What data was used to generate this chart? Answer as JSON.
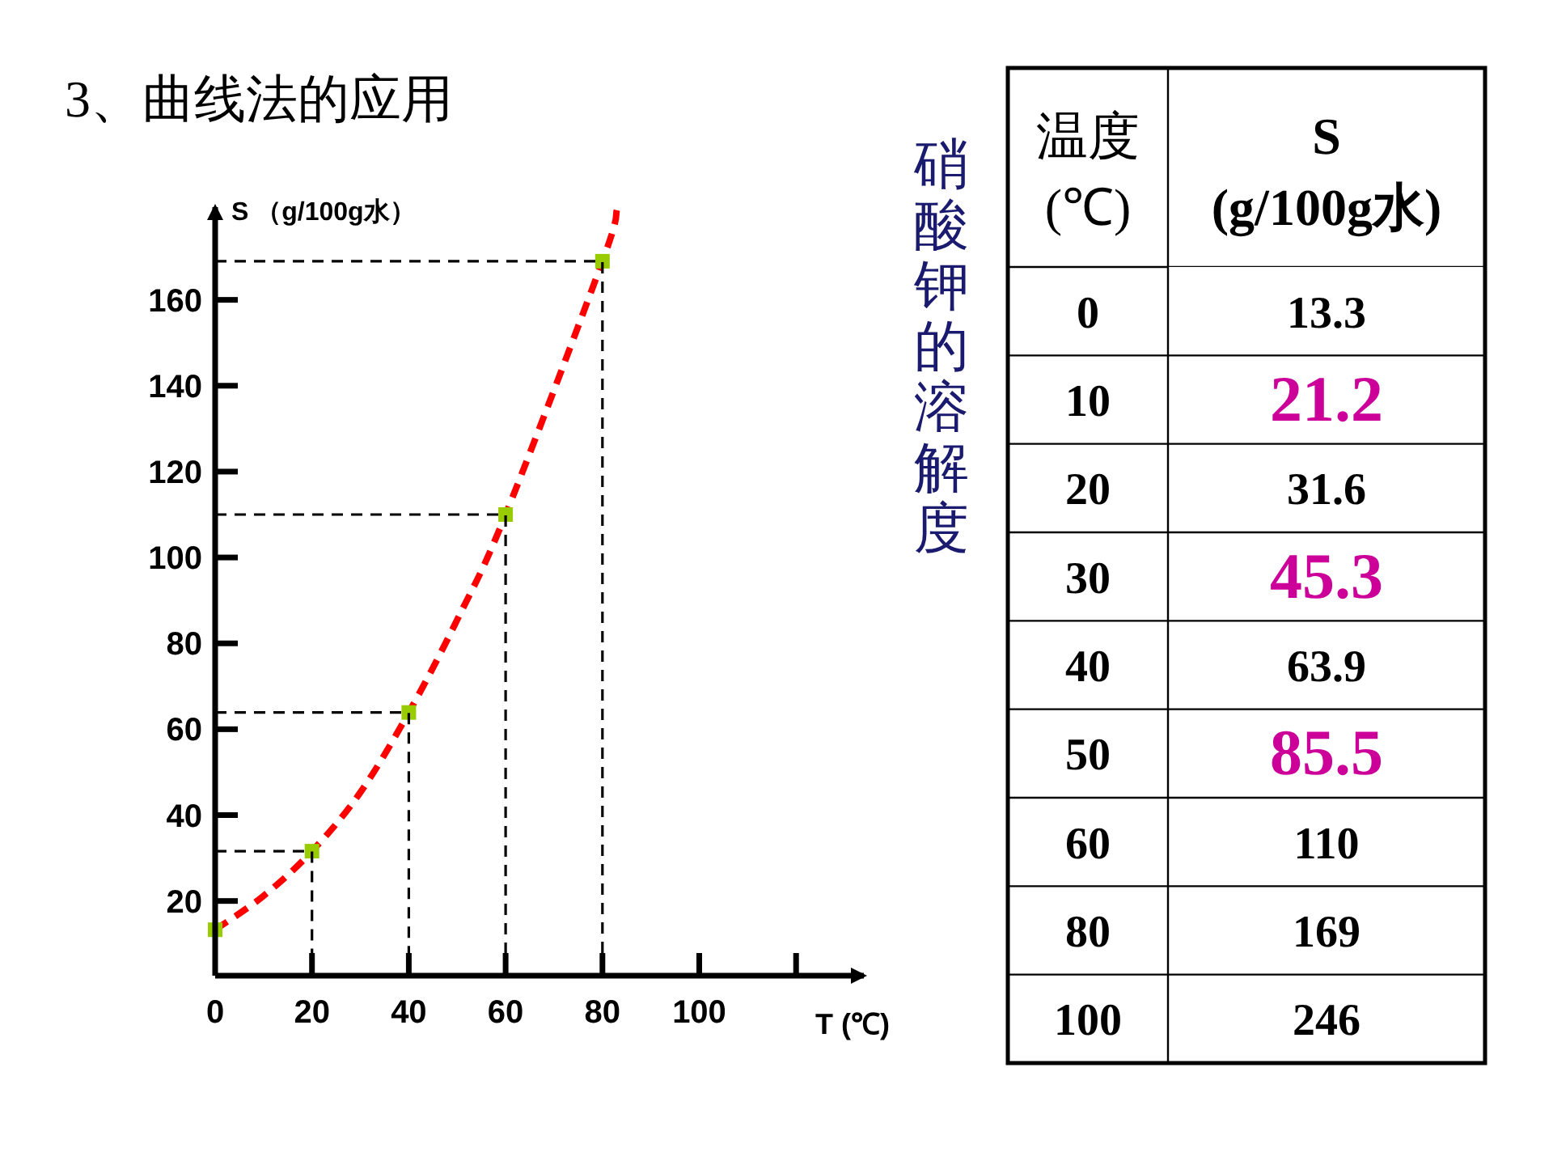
{
  "chart_data": [
    {
      "type": "line",
      "title": "3、曲线法的应用",
      "xlabel": "T (℃)",
      "ylabel": "S （g/100g水）",
      "annotations": [
        "硝酸钾的溶解度"
      ],
      "xlim": [
        0,
        134
      ],
      "ylim": [
        2.6,
        181.6
      ],
      "xticks": [
        {
          "value": 0,
          "label": "0"
        },
        20,
        40,
        60,
        80,
        100,
        {
          "value": 120,
          "label": null
        }
      ],
      "yticks": [
        20,
        40,
        60,
        80,
        100,
        120,
        140,
        160
      ],
      "series": [
        {
          "type": "line",
          "color": "#ff0000",
          "line_style": "dashed",
          "marker": "none",
          "x": [
            0,
            10,
            20,
            30,
            40,
            50,
            60,
            80,
            83
          ],
          "values": [
            13.3,
            21.2,
            31.6,
            45.3,
            63.9,
            85.5,
            110,
            169,
            181
          ]
        },
        {
          "type": "scatter",
          "color": "#99cc00",
          "marker": "square",
          "x": [
            0,
            20,
            40,
            60,
            80
          ],
          "values": [
            13.3,
            31.6,
            63.9,
            110,
            169
          ]
        },
        {
          "type": "line",
          "color": "#000000",
          "line_style": "dashed",
          "marker": "none",
          "x": [
            0,
            20,
            20
          ],
          "values": [
            31.6,
            31.6,
            2.6
          ]
        },
        {
          "type": "line",
          "color": "#000000",
          "line_style": "dashed",
          "marker": "none",
          "x": [
            0,
            40,
            40
          ],
          "values": [
            63.9,
            63.9,
            2.6
          ]
        },
        {
          "type": "line",
          "color": "#000000",
          "line_style": "dashed",
          "marker": "none",
          "x": [
            0,
            60,
            60
          ],
          "values": [
            110,
            110,
            2.6
          ]
        },
        {
          "type": "line",
          "color": "#000000",
          "line_style": "dashed",
          "marker": "none",
          "x": [
            0,
            80,
            80
          ],
          "values": [
            169,
            169,
            2.6
          ]
        }
      ],
      "tick_labels": "xy"
    },
    {
      "type": "heatmap",
      "ylabel": "温度\n(℃)",
      "categories": [
        "S\n(g/100g水)"
      ],
      "y_categories": [
        "0",
        "10",
        "20",
        "30",
        "40",
        "50",
        "60",
        "80",
        "100"
      ],
      "cells": [
        [
          13.3
        ],
        [
          21.2
        ],
        [
          31.6
        ],
        [
          45.3
        ],
        [
          63.9
        ],
        [
          85.5
        ],
        [
          110
        ],
        [
          169
        ],
        [
          246
        ]
      ],
      "data_labels": true,
      "colors": [
        "#000000",
        "#cc0099",
        "#000000",
        "#cc0099",
        "#000000",
        "#cc0099",
        "#000000",
        "#000000",
        "#000000"
      ]
    }
  ]
}
